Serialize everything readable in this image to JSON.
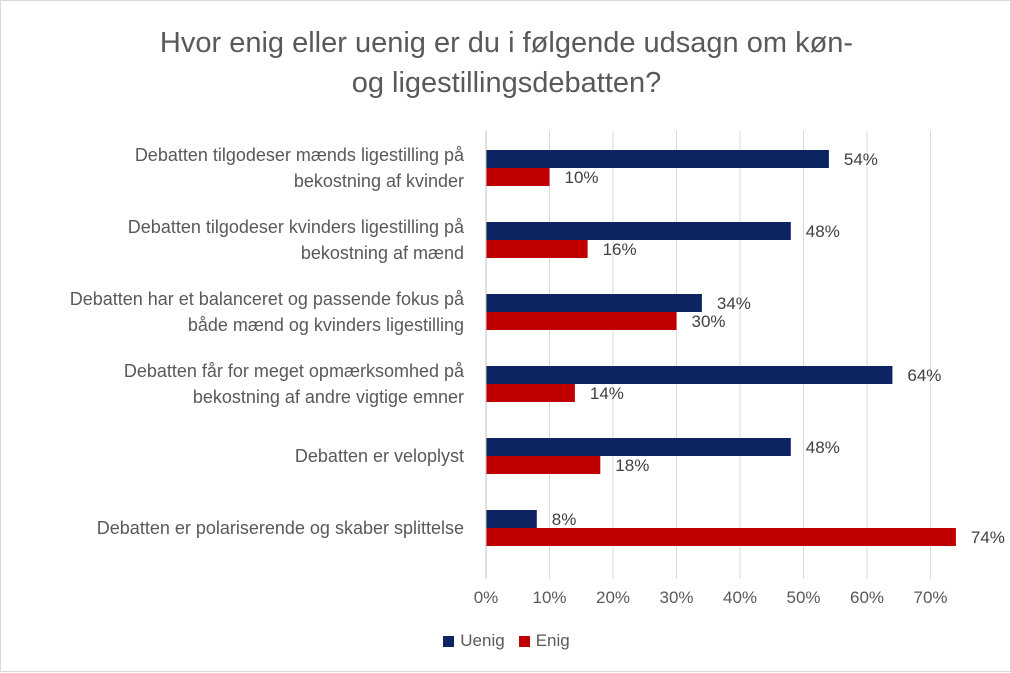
{
  "chart_data": {
    "type": "bar",
    "orientation": "horizontal",
    "title_lines": [
      "Hvor enig eller uenig er du i følgende udsagn om køn-",
      "og ligestillingsdebatten?"
    ],
    "categories": [
      [
        "Debatten tilgodeser mænds ligestilling på",
        "bekostning af kvinder"
      ],
      [
        "Debatten tilgodeser kvinders ligestilling på",
        "bekostning af mænd"
      ],
      [
        "Debatten har et balanceret og passende fokus på",
        "både mænd og kvinders ligestilling"
      ],
      [
        "Debatten får for meget opmærksomhed på",
        "bekostning af andre vigtige emner"
      ],
      [
        "Debatten er veloplyst"
      ],
      [
        "Debatten er polariserende og skaber splittelse"
      ]
    ],
    "series": [
      {
        "name": "Uenig",
        "color": "#0c2461",
        "values": [
          54,
          48,
          34,
          64,
          48,
          8
        ],
        "labels": [
          "54%",
          "48%",
          "34%",
          "64%",
          "48%",
          "8%"
        ]
      },
      {
        "name": "Enig",
        "color": "#c00000",
        "values": [
          10,
          16,
          30,
          14,
          18,
          74
        ],
        "labels": [
          "10%",
          "16%",
          "30%",
          "14%",
          "18%",
          "74%"
        ]
      }
    ],
    "xlim": [
      0,
      74
    ],
    "xticks": [
      0,
      10,
      20,
      30,
      40,
      50,
      60,
      70
    ],
    "xtick_labels": [
      "0%",
      "10%",
      "20%",
      "30%",
      "40%",
      "50%",
      "60%",
      "70%"
    ],
    "grid": true,
    "legend_position": "bottom"
  }
}
